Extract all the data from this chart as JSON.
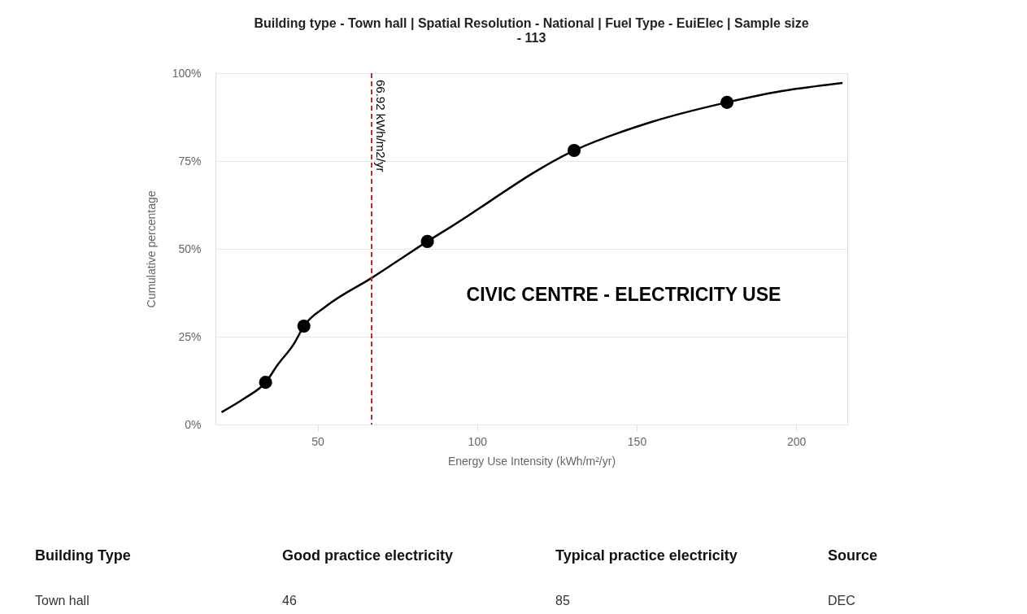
{
  "chart_data": {
    "type": "line",
    "title": "Building type - Town hall | Spatial Resolution - National | Fuel Type - EuiElec | Sample size - 113",
    "xlabel": "Energy Use Intensity (kWh/m²/yr)",
    "ylabel": "Cumulative percentage",
    "series": [
      {
        "type": "line",
        "color": "#000000",
        "marker": "none",
        "x": [
          19.9,
          27,
          33.7,
          37.5,
          42.6,
          45.7,
          52.6,
          66.9,
          84.4,
          91.3,
          130.4,
          154.6,
          178.3,
          195.4,
          214.5
        ],
        "values": [
          3.5,
          7.4,
          12.0,
          17,
          23,
          28.0,
          33.6,
          41.7,
          52.1,
          56,
          78.0,
          86.1,
          91.7,
          94.9,
          97.2
        ]
      },
      {
        "type": "scatter",
        "color": "#000000",
        "marker": "circle",
        "x": [
          33.7,
          45.7,
          84.4,
          130.4,
          178.3
        ],
        "values": [
          12.0,
          28.0,
          52.1,
          78.0,
          91.7
        ]
      }
    ],
    "xlim": [
      18,
      216
    ],
    "ylim": [
      0,
      100
    ],
    "xticks": [
      50,
      100,
      150,
      200
    ],
    "yticks": [
      {
        "value": 0,
        "label": "0%"
      },
      {
        "value": 25,
        "label": "25%"
      },
      {
        "value": 50,
        "label": "50%"
      },
      {
        "value": 75,
        "label": "75%"
      },
      {
        "value": 100,
        "label": "100%"
      }
    ],
    "grid": "y",
    "ref_lines": [
      {
        "axis": "x",
        "value": 66.92,
        "label": "66.92 kWh/m2/yr",
        "color": "#c0272d",
        "line_style": "dashed"
      }
    ],
    "annotations": [
      "CIVIC CENTRE - ELECTRICITY USE",
      "Building Type",
      "Good practice electricity",
      "Typical practice electricity",
      "Source",
      "Town hall",
      "46",
      "85",
      "DEC"
    ]
  }
}
